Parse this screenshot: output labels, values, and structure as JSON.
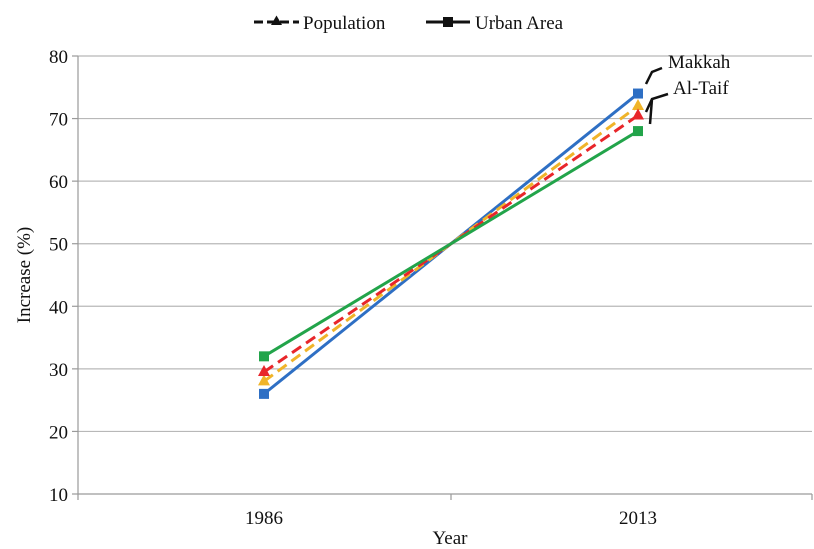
{
  "chart_data": {
    "type": "line",
    "title": "",
    "xlabel": "Year",
    "ylabel": "Increase (%)",
    "categories": [
      "1986",
      "2013"
    ],
    "ylim": [
      10,
      80
    ],
    "yticks": [
      10,
      20,
      30,
      40,
      50,
      60,
      70,
      80
    ],
    "grid": true,
    "legend": {
      "placement": "top-center",
      "entries": [
        {
          "label": "Population",
          "style": "dashed",
          "marker": "triangle"
        },
        {
          "label": "Urban Area",
          "style": "solid",
          "marker": "square"
        }
      ]
    },
    "series": [
      {
        "city": "Makkah",
        "kind": "Urban Area",
        "values": [
          26,
          74
        ],
        "color": "#2e6fc4",
        "dash": false,
        "marker": "square"
      },
      {
        "city": "Makkah",
        "kind": "Population",
        "values": [
          28,
          72
        ],
        "color": "#f0b429",
        "dash": true,
        "marker": "triangle"
      },
      {
        "city": "Al-Taif",
        "kind": "Population",
        "values": [
          29.5,
          70.5
        ],
        "color": "#e8262a",
        "dash": true,
        "marker": "triangle"
      },
      {
        "city": "Al-Taif",
        "kind": "Urban Area",
        "values": [
          32,
          68
        ],
        "color": "#22a44a",
        "dash": false,
        "marker": "square"
      }
    ],
    "annotations": [
      "Makkah",
      "Al-Taif"
    ]
  }
}
